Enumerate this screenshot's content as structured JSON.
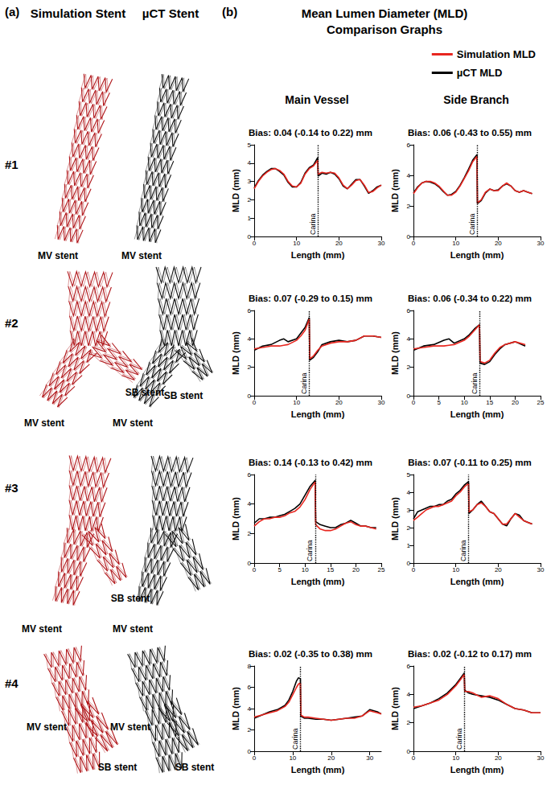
{
  "figure": {
    "panel_a": "(a)",
    "sim_header": "Simulation Stent",
    "uct_header": "µCT Stent",
    "panel_b": "(b)",
    "panel_b_title": [
      "Mean Lumen Diameter (MLD)",
      "Comparison Graphs"
    ],
    "column_titles": [
      "Main Vessel",
      "Side Branch"
    ],
    "rows": [
      {
        "label": "#1",
        "simulation_labels": [
          "MV stent"
        ],
        "uct_labels": [
          "MV stent"
        ]
      },
      {
        "label": "#2",
        "simulation_labels": [
          "MV stent",
          "SB stent"
        ],
        "uct_labels": [
          "MV stent",
          "SB stent"
        ]
      },
      {
        "label": "#3",
        "simulation_labels": [
          "MV stent",
          "SB stent"
        ],
        "uct_labels": [
          "MV stent"
        ]
      },
      {
        "label": "#4",
        "simulation_labels": [
          "MV stent",
          "SB stent"
        ],
        "uct_labels": [
          "MV stent",
          "SB stent"
        ]
      }
    ]
  },
  "chart_data": [
    {
      "type": "line",
      "title": "Bias: 0.04 (-0.14 to 0.22) mm",
      "x_label": "Length (mm)",
      "y_label": "MLD (mm)",
      "legend": "upper right",
      "grid": false,
      "xlim": [
        0,
        30
      ],
      "xticks": [
        0,
        10,
        20,
        30
      ],
      "ylim": [
        0,
        5
      ],
      "yticks": [
        0,
        1,
        2,
        3,
        4,
        5
      ],
      "annotation": {
        "text": "Carina",
        "x": 15
      },
      "x": [
        0,
        1,
        2,
        3,
        4,
        5,
        6,
        7,
        8,
        9,
        10,
        11,
        12,
        13,
        14,
        15,
        15.1,
        16,
        17,
        18,
        19,
        20,
        21,
        22,
        23,
        24,
        25,
        26,
        27,
        28,
        29,
        30
      ],
      "series": [
        {
          "name": "Simulation MLD",
          "color": "#e8261f",
          "values": [
            2.6,
            3.0,
            3.3,
            3.5,
            3.65,
            3.7,
            3.6,
            3.4,
            3.0,
            2.75,
            2.7,
            2.9,
            3.4,
            3.7,
            3.85,
            4.15,
            3.4,
            3.5,
            3.45,
            3.5,
            3.45,
            3.2,
            2.8,
            2.6,
            2.8,
            3.05,
            3.1,
            2.8,
            2.4,
            2.45,
            2.65,
            2.8
          ]
        },
        {
          "name": "µCT MLD",
          "color": "#000000",
          "values": [
            2.65,
            3.05,
            3.35,
            3.55,
            3.7,
            3.7,
            3.55,
            3.35,
            2.95,
            2.7,
            2.7,
            2.95,
            3.45,
            3.75,
            3.9,
            4.3,
            3.3,
            3.45,
            3.4,
            3.5,
            3.4,
            3.15,
            2.75,
            2.6,
            2.85,
            3.1,
            3.1,
            2.75,
            2.35,
            2.5,
            2.7,
            2.8
          ]
        }
      ]
    },
    {
      "type": "line",
      "title": "Bias: 0.06 (-0.43 to 0.55) mm",
      "x_label": "Length (mm)",
      "y_label": "MLD (mm)",
      "grid": false,
      "xlim": [
        0,
        30
      ],
      "xticks": [
        0,
        10,
        20,
        30
      ],
      "ylim": [
        0,
        6
      ],
      "yticks": [
        0,
        2,
        4,
        6
      ],
      "annotation": {
        "text": "Carina",
        "x": 15
      },
      "x": [
        0,
        1,
        2,
        3,
        4,
        5,
        6,
        7,
        8,
        9,
        10,
        11,
        12,
        13,
        14,
        15,
        15.1,
        16,
        17,
        18,
        19,
        20,
        21,
        22,
        23,
        24,
        25,
        26,
        27,
        28
      ],
      "series": [
        {
          "name": "Simulation MLD",
          "color": "#e8261f",
          "values": [
            2.8,
            3.2,
            3.5,
            3.6,
            3.6,
            3.5,
            3.3,
            3.0,
            2.7,
            2.7,
            2.9,
            3.3,
            3.8,
            4.3,
            4.9,
            5.25,
            2.2,
            2.4,
            2.9,
            3.1,
            3.0,
            3.0,
            3.3,
            3.5,
            3.3,
            3.0,
            2.9,
            3.0,
            2.9,
            2.8
          ]
        },
        {
          "name": "µCT MLD",
          "color": "#000000",
          "values": [
            2.85,
            3.25,
            3.5,
            3.6,
            3.55,
            3.45,
            3.25,
            2.95,
            2.7,
            2.75,
            2.95,
            3.35,
            3.85,
            4.4,
            5.0,
            5.35,
            2.15,
            2.35,
            2.85,
            3.1,
            3.0,
            3.05,
            3.3,
            3.45,
            3.3,
            3.0,
            2.9,
            3.0,
            2.9,
            2.8
          ]
        }
      ]
    },
    {
      "type": "line",
      "title": "Bias: 0.07 (-0.29 to 0.15) mm",
      "x_label": "Length (mm)",
      "y_label": "MLD (mm)",
      "grid": false,
      "xlim": [
        0,
        30
      ],
      "xticks": [
        0,
        10,
        20,
        30
      ],
      "ylim": [
        0,
        6
      ],
      "yticks": [
        0,
        2,
        4,
        6
      ],
      "annotation": {
        "text": "Carina",
        "x": 13
      },
      "x": [
        0,
        2,
        4,
        6,
        7,
        8,
        10,
        11,
        12,
        13,
        13.1,
        14,
        15,
        16,
        18,
        20,
        22,
        24,
        26,
        28,
        30
      ],
      "series": [
        {
          "name": "Simulation MLD",
          "color": "#e8261f",
          "values": [
            3.3,
            3.4,
            3.5,
            3.5,
            3.55,
            3.6,
            3.9,
            4.2,
            4.6,
            5.4,
            2.6,
            2.8,
            3.2,
            3.5,
            3.7,
            3.8,
            3.8,
            3.9,
            4.2,
            4.2,
            4.1
          ]
        },
        {
          "name": "µCT MLD",
          "color": "#000000",
          "values": [
            3.2,
            3.5,
            3.6,
            3.9,
            4.0,
            3.8,
            4.0,
            4.4,
            4.8,
            5.5,
            2.5,
            2.7,
            3.1,
            3.6,
            3.8,
            3.9,
            3.8,
            3.9,
            4.2,
            4.2,
            4.1
          ]
        }
      ]
    },
    {
      "type": "line",
      "title": "Bias: 0.06 (-0.34 to 0.22) mm",
      "x_label": "Length (mm)",
      "y_label": "MLD (mm)",
      "grid": false,
      "xlim": [
        0,
        25
      ],
      "xticks": [
        0,
        5,
        10,
        15,
        20,
        25
      ],
      "ylim": [
        0,
        6
      ],
      "yticks": [
        0,
        2,
        4,
        6
      ],
      "annotation": {
        "text": "Carina",
        "x": 13
      },
      "x": [
        0,
        2,
        4,
        6,
        7,
        8,
        10,
        11,
        12,
        13,
        13.1,
        14,
        15,
        16,
        17,
        18,
        20,
        22
      ],
      "series": [
        {
          "name": "Simulation MLD",
          "color": "#e8261f",
          "values": [
            3.3,
            3.4,
            3.5,
            3.5,
            3.55,
            3.6,
            3.9,
            4.2,
            4.6,
            5.0,
            2.4,
            2.3,
            2.5,
            3.0,
            3.4,
            3.6,
            3.8,
            3.6
          ]
        },
        {
          "name": "µCT MLD",
          "color": "#000000",
          "values": [
            3.2,
            3.5,
            3.6,
            3.9,
            4.0,
            3.7,
            4.0,
            4.3,
            4.7,
            5.0,
            2.3,
            2.2,
            2.4,
            2.9,
            3.3,
            3.6,
            3.8,
            3.5
          ]
        }
      ]
    },
    {
      "type": "line",
      "title": "Bias: 0.14 (-0.13 to 0.42) mm",
      "x_label": "Length (mm)",
      "y_label": "MLD (mm)",
      "grid": false,
      "xlim": [
        0,
        25
      ],
      "xticks": [
        0,
        5,
        10,
        15,
        20,
        25
      ],
      "ylim": [
        0,
        6
      ],
      "yticks": [
        0,
        2,
        4,
        6
      ],
      "annotation": {
        "text": "Carina",
        "x": 12
      },
      "x": [
        0,
        1,
        2,
        3,
        4,
        5,
        6,
        7,
        8,
        9,
        10,
        11,
        12,
        12.1,
        13,
        14,
        15,
        16,
        17,
        18,
        19,
        20,
        21,
        22,
        23,
        24
      ],
      "series": [
        {
          "name": "Simulation MLD",
          "color": "#e8261f",
          "values": [
            2.5,
            2.8,
            3.0,
            3.0,
            3.1,
            3.1,
            3.2,
            3.4,
            3.5,
            3.8,
            4.3,
            5.0,
            5.5,
            2.6,
            2.3,
            2.2,
            2.2,
            2.3,
            2.5,
            2.7,
            2.8,
            2.6,
            2.5,
            2.5,
            2.4,
            2.3
          ]
        },
        {
          "name": "µCT MLD",
          "color": "#000000",
          "values": [
            2.7,
            3.0,
            3.0,
            3.1,
            3.1,
            3.2,
            3.3,
            3.5,
            3.7,
            4.0,
            4.6,
            5.2,
            5.6,
            2.8,
            2.6,
            2.5,
            2.4,
            2.4,
            2.6,
            2.7,
            2.9,
            2.7,
            2.5,
            2.5,
            2.4,
            2.4
          ]
        }
      ]
    },
    {
      "type": "line",
      "title": "Bias: 0.07 (-0.11 to 0.25) mm",
      "x_label": "Length (mm)",
      "y_label": "MLD (mm)",
      "grid": false,
      "xlim": [
        0,
        30
      ],
      "xticks": [
        0,
        10,
        20,
        30
      ],
      "ylim": [
        0,
        5
      ],
      "yticks": [
        0,
        1,
        2,
        3,
        4,
        5
      ],
      "annotation": {
        "text": "Carina",
        "x": 13
      },
      "x": [
        0,
        1,
        2,
        3,
        4,
        5,
        6,
        7,
        8,
        9,
        10,
        11,
        12,
        13,
        13.1,
        14,
        15,
        16,
        17,
        18,
        19,
        20,
        21,
        22,
        23,
        24,
        25,
        26,
        27,
        28
      ],
      "series": [
        {
          "name": "Simulation MLD",
          "color": "#e8261f",
          "values": [
            2.4,
            2.6,
            2.8,
            3.0,
            3.1,
            3.2,
            3.2,
            3.3,
            3.4,
            3.5,
            3.8,
            4.0,
            4.3,
            4.5,
            2.9,
            3.0,
            3.3,
            3.4,
            3.2,
            2.9,
            2.8,
            2.5,
            2.2,
            2.2,
            2.5,
            2.8,
            2.6,
            2.4,
            2.3,
            2.2
          ]
        },
        {
          "name": "µCT MLD",
          "color": "#000000",
          "values": [
            2.5,
            2.9,
            3.0,
            3.1,
            3.2,
            3.2,
            3.3,
            3.3,
            3.5,
            3.6,
            3.9,
            4.1,
            4.4,
            4.6,
            2.8,
            3.0,
            3.3,
            3.5,
            3.2,
            2.9,
            2.8,
            2.5,
            2.2,
            2.1,
            2.5,
            2.8,
            2.7,
            2.4,
            2.3,
            2.2
          ]
        }
      ]
    },
    {
      "type": "line",
      "title": "Bias: 0.02 (-0.35 to 0.38) mm",
      "x_label": "Length (mm)",
      "y_label": "MLD (mm)",
      "grid": false,
      "xlim": [
        0,
        33
      ],
      "xticks": [
        0,
        10,
        20,
        30
      ],
      "ylim": [
        0,
        8
      ],
      "yticks": [
        0,
        2,
        4,
        6,
        8
      ],
      "annotation": {
        "text": "Carina",
        "x": 12
      },
      "x": [
        0,
        2,
        4,
        6,
        8,
        9,
        10,
        11,
        11.5,
        12,
        12.1,
        13,
        14,
        16,
        18,
        20,
        22,
        24,
        26,
        28,
        30,
        32,
        33
      ],
      "series": [
        {
          "name": "Simulation MLD",
          "color": "#e8261f",
          "values": [
            3.2,
            3.4,
            3.6,
            3.8,
            4.2,
            4.6,
            5.3,
            6.0,
            6.3,
            6.4,
            3.4,
            3.2,
            3.2,
            3.1,
            3.0,
            2.9,
            3.0,
            3.1,
            3.1,
            3.3,
            3.8,
            3.6,
            3.5
          ]
        },
        {
          "name": "µCT MLD",
          "color": "#000000",
          "values": [
            3.1,
            3.4,
            3.7,
            3.9,
            4.3,
            4.8,
            5.6,
            6.6,
            6.9,
            6.8,
            3.3,
            3.1,
            3.1,
            3.0,
            3.0,
            2.9,
            3.0,
            3.1,
            3.2,
            3.3,
            3.9,
            3.7,
            3.5
          ]
        }
      ]
    },
    {
      "type": "line",
      "title": "Bias: 0.02 (-0.12 to 0.17) mm",
      "x_label": "Length (mm)",
      "y_label": "MLD (mm)",
      "grid": false,
      "xlim": [
        0,
        30
      ],
      "xticks": [
        0,
        10,
        20,
        30
      ],
      "ylim": [
        0,
        6
      ],
      "yticks": [
        0,
        2,
        4,
        6
      ],
      "annotation": {
        "text": "Carina",
        "x": 12
      },
      "x": [
        0,
        2,
        4,
        6,
        8,
        10,
        11,
        12,
        12.1,
        13,
        14,
        16,
        18,
        20,
        22,
        24,
        26,
        28,
        30
      ],
      "series": [
        {
          "name": "Simulation MLD",
          "color": "#e8261f",
          "values": [
            3.1,
            3.2,
            3.4,
            3.6,
            4.0,
            4.6,
            5.0,
            5.4,
            4.2,
            4.2,
            4.1,
            3.8,
            3.9,
            3.7,
            3.3,
            3.0,
            2.9,
            2.7,
            2.7
          ]
        },
        {
          "name": "µCT MLD",
          "color": "#000000",
          "values": [
            3.0,
            3.2,
            3.4,
            3.7,
            4.1,
            4.7,
            5.1,
            5.5,
            4.3,
            4.1,
            4.0,
            3.9,
            3.8,
            3.6,
            3.3,
            3.0,
            2.9,
            2.7,
            2.7
          ]
        }
      ]
    }
  ]
}
